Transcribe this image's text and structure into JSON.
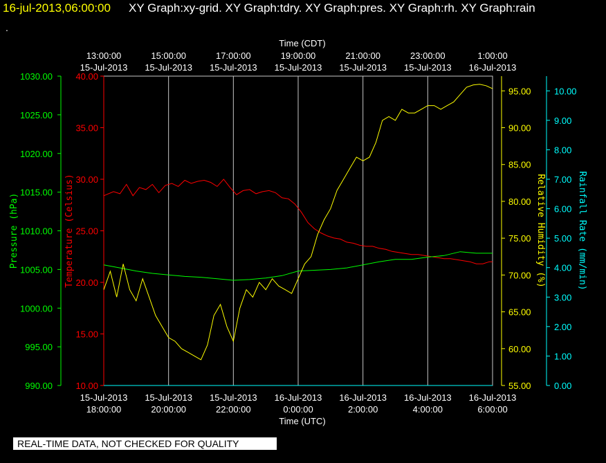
{
  "header": {
    "timestamp": "16-jul-2013,06:00:00",
    "titles": "XY Graph:xy-grid.  XY Graph:tdry.  XY Graph:pres.  XY Graph:rh.  XY Graph:rain",
    "dot": "."
  },
  "footer": {
    "disclaimer": "REAL-TIME DATA, NOT CHECKED FOR QUALITY"
  },
  "colors": {
    "pressure": "#00ff00",
    "temperature": "#ff0000",
    "humidity": "#ffff00",
    "rain": "#00ffff",
    "grid": "#c8c8c8",
    "text": "#ffffff"
  },
  "chart_data": {
    "type": "line",
    "xlabel_bottom": "Time (UTC)",
    "xlabel_top": "Time (CDT)",
    "bottom_ticks": [
      {
        "line1": "15-Jul-2013",
        "line2": "18:00:00"
      },
      {
        "line1": "15-Jul-2013",
        "line2": "20:00:00"
      },
      {
        "line1": "15-Jul-2013",
        "line2": "22:00:00"
      },
      {
        "line1": "16-Jul-2013",
        "line2": "0:00:00"
      },
      {
        "line1": "16-Jul-2013",
        "line2": "2:00:00"
      },
      {
        "line1": "16-Jul-2013",
        "line2": "4:00:00"
      },
      {
        "line1": "16-Jul-2013",
        "line2": "6:00:00"
      }
    ],
    "top_ticks": [
      {
        "line1": "13:00:00",
        "line2": "15-Jul-2013"
      },
      {
        "line1": "15:00:00",
        "line2": "15-Jul-2013"
      },
      {
        "line1": "17:00:00",
        "line2": "15-Jul-2013"
      },
      {
        "line1": "19:00:00",
        "line2": "15-Jul-2013"
      },
      {
        "line1": "21:00:00",
        "line2": "15-Jul-2013"
      },
      {
        "line1": "23:00:00",
        "line2": "15-Jul-2013"
      },
      {
        "line1": "1:00:00",
        "line2": "16-Jul-2013"
      }
    ],
    "x_hours": [
      0,
      2,
      4,
      6,
      8,
      10,
      12
    ],
    "xlim": [
      0,
      12
    ],
    "axes": {
      "pressure": {
        "label": "Pressure (hPa)",
        "ylim": [
          990,
          1030
        ],
        "ticks": [
          "990.00",
          "995.00",
          "1000.00",
          "1005.00",
          "1010.00",
          "1015.00",
          "1020.00",
          "1025.00",
          "1030.00"
        ]
      },
      "temperature": {
        "label": "Temperature (Celsius)",
        "ylim": [
          10,
          40
        ],
        "ticks": [
          "10.00",
          "15.00",
          "20.00",
          "25.00",
          "30.00",
          "35.00",
          "40.00"
        ]
      },
      "humidity": {
        "label": "Relative Humidity (%)",
        "ylim": [
          55,
          97
        ],
        "ticks": [
          "55.00",
          "60.00",
          "65.00",
          "70.00",
          "75.00",
          "80.00",
          "85.00",
          "90.00",
          "95.00"
        ]
      },
      "rain": {
        "label": "Rainfall Rate (mm/min)",
        "ylim": [
          0,
          10.5
        ],
        "ticks": [
          "0.00",
          "1.00",
          "2.00",
          "3.00",
          "4.00",
          "5.00",
          "6.00",
          "7.00",
          "8.00",
          "9.00",
          "10.00"
        ]
      }
    },
    "series": [
      {
        "axis": "temperature",
        "x": [
          0,
          0.3,
          0.5,
          0.7,
          0.9,
          1.1,
          1.3,
          1.5,
          1.7,
          1.9,
          2.1,
          2.3,
          2.5,
          2.7,
          2.9,
          3.1,
          3.3,
          3.5,
          3.7,
          3.9,
          4.1,
          4.3,
          4.5,
          4.7,
          4.9,
          5.1,
          5.3,
          5.5,
          5.7,
          5.9,
          6.1,
          6.3,
          6.5,
          6.7,
          6.9,
          7.1,
          7.3,
          7.5,
          7.7,
          7.9,
          8.1,
          8.3,
          8.5,
          8.7,
          8.9,
          9.1,
          9.3,
          9.5,
          9.7,
          9.9,
          10.1,
          10.3,
          10.5,
          10.7,
          10.9,
          11.1,
          11.3,
          11.5,
          11.7,
          11.9,
          12
        ],
        "values": [
          28.4,
          28.8,
          28.6,
          29.5,
          28.4,
          29.2,
          29.0,
          29.5,
          28.7,
          29.4,
          29.6,
          29.3,
          29.9,
          29.6,
          29.8,
          29.9,
          29.7,
          29.3,
          30.0,
          29.2,
          28.5,
          28.9,
          29.0,
          28.6,
          28.8,
          28.9,
          28.7,
          28.2,
          28.1,
          27.6,
          26.8,
          25.8,
          25.2,
          24.8,
          24.5,
          24.3,
          24.2,
          23.9,
          23.8,
          23.6,
          23.5,
          23.5,
          23.3,
          23.2,
          23.0,
          22.9,
          22.8,
          22.7,
          22.7,
          22.6,
          22.5,
          22.4,
          22.3,
          22.3,
          22.2,
          22.1,
          22.0,
          21.8,
          21.8,
          22.0,
          22.0
        ]
      },
      {
        "axis": "pressure",
        "x": [
          0,
          0.5,
          1,
          1.5,
          2,
          2.5,
          3,
          3.5,
          4,
          4.5,
          5,
          5.5,
          6,
          6.5,
          7,
          7.5,
          8,
          8.5,
          9,
          9.5,
          10,
          10.5,
          11,
          11.5,
          12
        ],
        "values": [
          1005.6,
          1005.2,
          1004.8,
          1004.5,
          1004.3,
          1004.1,
          1004.0,
          1003.8,
          1003.6,
          1003.7,
          1003.9,
          1004.2,
          1004.8,
          1004.9,
          1005.0,
          1005.2,
          1005.6,
          1006.0,
          1006.3,
          1006.3,
          1006.6,
          1006.8,
          1007.3,
          1007.1,
          1007.1
        ]
      },
      {
        "axis": "humidity",
        "x": [
          0,
          0.2,
          0.4,
          0.6,
          0.8,
          1.0,
          1.2,
          1.4,
          1.6,
          1.8,
          2.0,
          2.2,
          2.4,
          2.6,
          2.8,
          3.0,
          3.2,
          3.4,
          3.6,
          3.8,
          4.0,
          4.2,
          4.4,
          4.6,
          4.8,
          5.0,
          5.2,
          5.4,
          5.6,
          5.8,
          6.0,
          6.2,
          6.4,
          6.6,
          6.8,
          7.0,
          7.2,
          7.4,
          7.6,
          7.8,
          8.0,
          8.2,
          8.4,
          8.6,
          8.8,
          9.0,
          9.2,
          9.4,
          9.6,
          9.8,
          10.0,
          10.2,
          10.4,
          10.6,
          10.8,
          11.0,
          11.2,
          11.4,
          11.6,
          11.8,
          12.0
        ],
        "values": [
          68.0,
          70.5,
          67.0,
          71.5,
          68.0,
          66.5,
          69.5,
          67.0,
          64.5,
          63.0,
          61.5,
          61.0,
          60.0,
          59.5,
          59.0,
          58.5,
          60.5,
          64.5,
          66.0,
          63.0,
          61.0,
          65.5,
          68.0,
          67.0,
          69.0,
          68.0,
          69.5,
          68.5,
          68.0,
          67.5,
          69.5,
          71.5,
          72.5,
          75.5,
          77.5,
          79.0,
          81.5,
          83.0,
          84.5,
          86.0,
          85.5,
          86.0,
          88.0,
          91.0,
          91.5,
          91.0,
          92.5,
          92.0,
          92.0,
          92.5,
          93.0,
          93.0,
          92.5,
          93.0,
          93.5,
          94.5,
          95.5,
          95.8,
          95.9,
          95.7,
          95.3
        ]
      },
      {
        "axis": "rain",
        "x": [
          0,
          12
        ],
        "values": [
          0,
          0
        ]
      }
    ],
    "grid": true
  }
}
